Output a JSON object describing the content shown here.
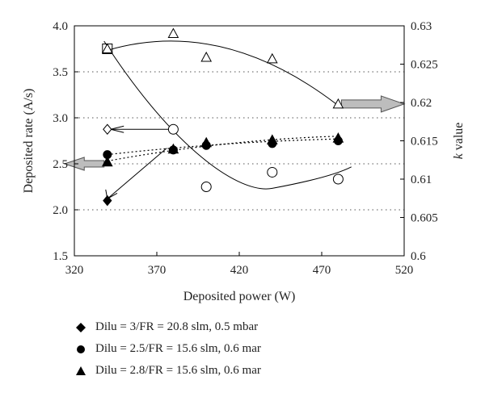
{
  "chart_data": {
    "type": "scatter",
    "title": "",
    "xlabel": "Deposited power (W)",
    "ylabel_left": "Deposited rate (A/s)",
    "ylabel_right_prefix": "k",
    "ylabel_right_suffix": " value",
    "xlim": [
      320,
      520
    ],
    "ylim_left": [
      1.5,
      4.0
    ],
    "ylim_right": [
      0.6,
      0.63
    ],
    "x_ticks": [
      "320",
      "370",
      "420",
      "470",
      "520"
    ],
    "y_left_ticks": [
      "1.5",
      "2.0",
      "2.5",
      "3.0",
      "3.5",
      "4.0"
    ],
    "y_right_ticks": [
      "0.6",
      "0.605",
      "0.61",
      "0.615",
      "0.62",
      "0.625",
      "0.63"
    ],
    "grid": "horizontal dotted",
    "series": [
      {
        "name": "Dilu = 3/FR = 20.8 slm, 0.5 mbar",
        "marker": "diamond",
        "deposition_rate": [
          {
            "x": 340,
            "y": 2.1
          }
        ],
        "k_value": [
          {
            "x": 340,
            "y": 0.6165
          }
        ]
      },
      {
        "name": "Dilu = 2.5/FR = 15.6 slm, 0.6 mar",
        "marker": "circle",
        "deposition_rate": [
          {
            "x": 340,
            "y": 2.6
          },
          {
            "x": 380,
            "y": 2.65
          },
          {
            "x": 400,
            "y": 2.7
          },
          {
            "x": 440,
            "y": 2.72
          },
          {
            "x": 480,
            "y": 2.75
          }
        ],
        "k_value": [
          {
            "x": 380,
            "y": 0.6165
          },
          {
            "x": 400,
            "y": 0.609
          },
          {
            "x": 440,
            "y": 0.6109
          },
          {
            "x": 480,
            "y": 0.61
          }
        ]
      },
      {
        "name": "Dilu = 2.8/FR = 15.6 slm, 0.6 mar",
        "marker": "triangle",
        "deposition_rate": [
          {
            "x": 340,
            "y": 2.52
          },
          {
            "x": 380,
            "y": 2.66
          },
          {
            "x": 400,
            "y": 2.73
          },
          {
            "x": 440,
            "y": 2.76
          },
          {
            "x": 480,
            "y": 2.78
          }
        ],
        "k_value": [
          {
            "x": 340,
            "y": 0.627
          },
          {
            "x": 380,
            "y": 0.629
          },
          {
            "x": 400,
            "y": 0.6259
          },
          {
            "x": 440,
            "y": 0.6257
          },
          {
            "x": 480,
            "y": 0.6198
          }
        ]
      }
    ],
    "legend": [
      {
        "marker": "diamond",
        "label": "Dilu = 3/FR = 20.8 slm, 0.5 mbar"
      },
      {
        "marker": "circle",
        "label": "Dilu = 2.5/FR = 15.6 slm, 0.6 mar"
      },
      {
        "marker": "triangle",
        "label": "Dilu = 2.8/FR = 15.6 slm, 0.6 mar"
      }
    ],
    "legend_placement": "bottom"
  }
}
